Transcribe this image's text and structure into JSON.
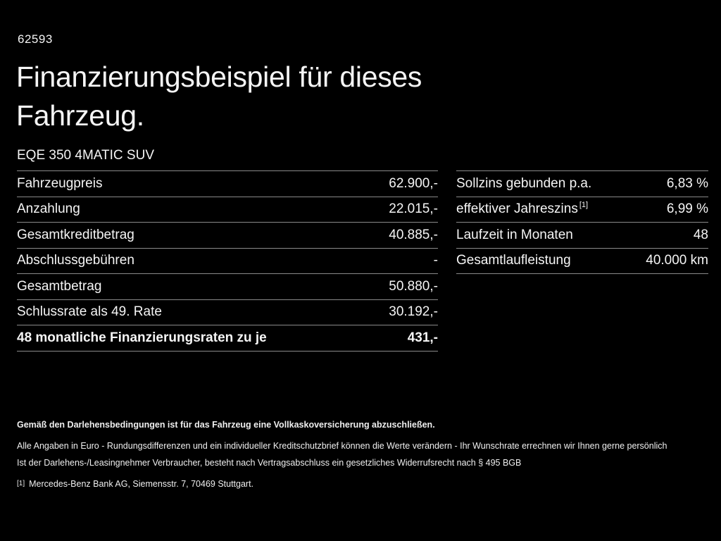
{
  "page": {
    "background_color": "#000000",
    "text_color": "#f5f5f5",
    "divider_color": "#8a8a8a"
  },
  "header": {
    "reference_number": "62593",
    "title_line1": "Finanzierungsbeispiel für dieses",
    "title_line2": "Fahrzeug.",
    "model": "EQE 350 4MATIC SUV"
  },
  "finance_table": {
    "rows": [
      {
        "label": "Fahrzeugpreis",
        "value": "62.900,-"
      },
      {
        "label": "Anzahlung",
        "value": "22.015,-"
      },
      {
        "label": "Gesamtkreditbetrag",
        "value": "40.885,-"
      },
      {
        "label": "Abschlussgebühren",
        "value": "-"
      },
      {
        "label": "Gesamtbetrag",
        "value": "50.880,-"
      },
      {
        "label": "Schlussrate als 49. Rate",
        "value": "30.192,-"
      },
      {
        "label": "48 monatliche Finanzierungsraten zu je",
        "value": "431,-"
      }
    ]
  },
  "conditions_table": {
    "rows": [
      {
        "label": "Sollzins gebunden p.a.",
        "sup": "",
        "value": "6,83 %"
      },
      {
        "label": "effektiver Jahreszins",
        "sup": "[1]",
        "value": "6,99 %"
      },
      {
        "label": "Laufzeit in Monaten",
        "sup": "",
        "value": "48"
      },
      {
        "label": "Gesamtlaufleistung",
        "sup": "",
        "value": "40.000 km"
      }
    ]
  },
  "footer": {
    "insurance_note": "Gemäß den Darlehensbedingungen ist für das Fahrzeug eine Vollkaskoversicherung abzuschließen.",
    "disclaimer_line1": "Alle Angaben in Euro - Rundungsdifferenzen und ein individueller Kreditschutzbrief können die Werte verändern - Ihr Wunschrate errechnen wir Ihnen gerne persönlich",
    "disclaimer_line2": "Ist der Darlehens-/Leasingnehmer Verbraucher, besteht nach Vertragsabschluss ein gesetzliches Widerrufsrecht nach § 495 BGB",
    "footnote_marker": "[1]",
    "footnote_text": "Mercedes-Benz Bank AG, Siemensstr. 7, 70469 Stuttgart."
  }
}
